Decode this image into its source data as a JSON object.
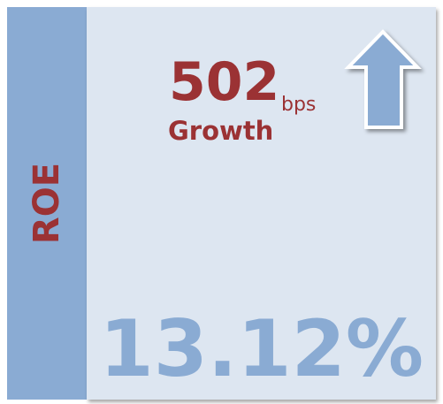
{
  "side_label": "ROE",
  "change": {
    "value": "502",
    "unit": "bps",
    "caption": "Growth"
  },
  "kpi": "13.12%"
}
